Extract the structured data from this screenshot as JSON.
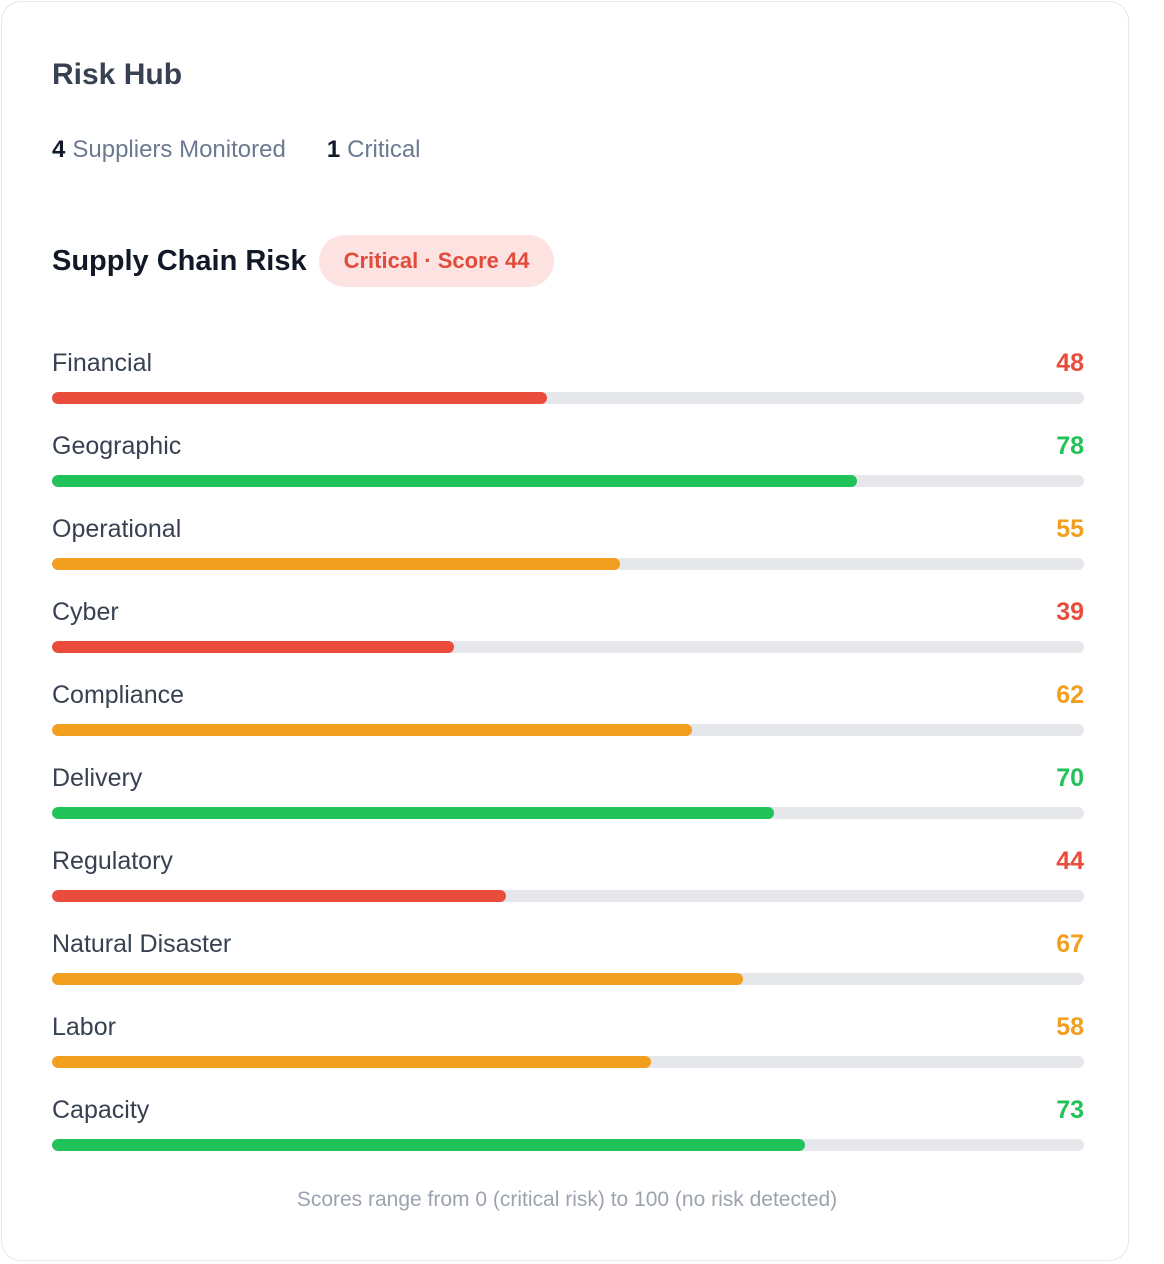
{
  "hub": {
    "title": "Risk Hub",
    "stats": [
      {
        "num": "4",
        "label": "Suppliers Monitored"
      },
      {
        "num": "1",
        "label": "Critical"
      }
    ]
  },
  "section": {
    "title": "Supply Chain Risk",
    "badge": "Critical · Score 44"
  },
  "colors": {
    "critical": "#ea4c3c",
    "warning": "#f29e1f",
    "good": "#22c25a",
    "track": "#e5e7eb"
  },
  "risks": [
    {
      "label": "Financial",
      "value": 48,
      "level": "critical"
    },
    {
      "label": "Geographic",
      "value": 78,
      "level": "good"
    },
    {
      "label": "Operational",
      "value": 55,
      "level": "warning"
    },
    {
      "label": "Cyber",
      "value": 39,
      "level": "critical"
    },
    {
      "label": "Compliance",
      "value": 62,
      "level": "warning"
    },
    {
      "label": "Delivery",
      "value": 70,
      "level": "good"
    },
    {
      "label": "Regulatory",
      "value": 44,
      "level": "critical"
    },
    {
      "label": "Natural Disaster",
      "value": 67,
      "level": "warning"
    },
    {
      "label": "Labor",
      "value": 58,
      "level": "warning"
    },
    {
      "label": "Capacity",
      "value": 73,
      "level": "good"
    }
  ],
  "footnote": "Scores range from 0 (critical risk) to 100 (no risk detected)"
}
